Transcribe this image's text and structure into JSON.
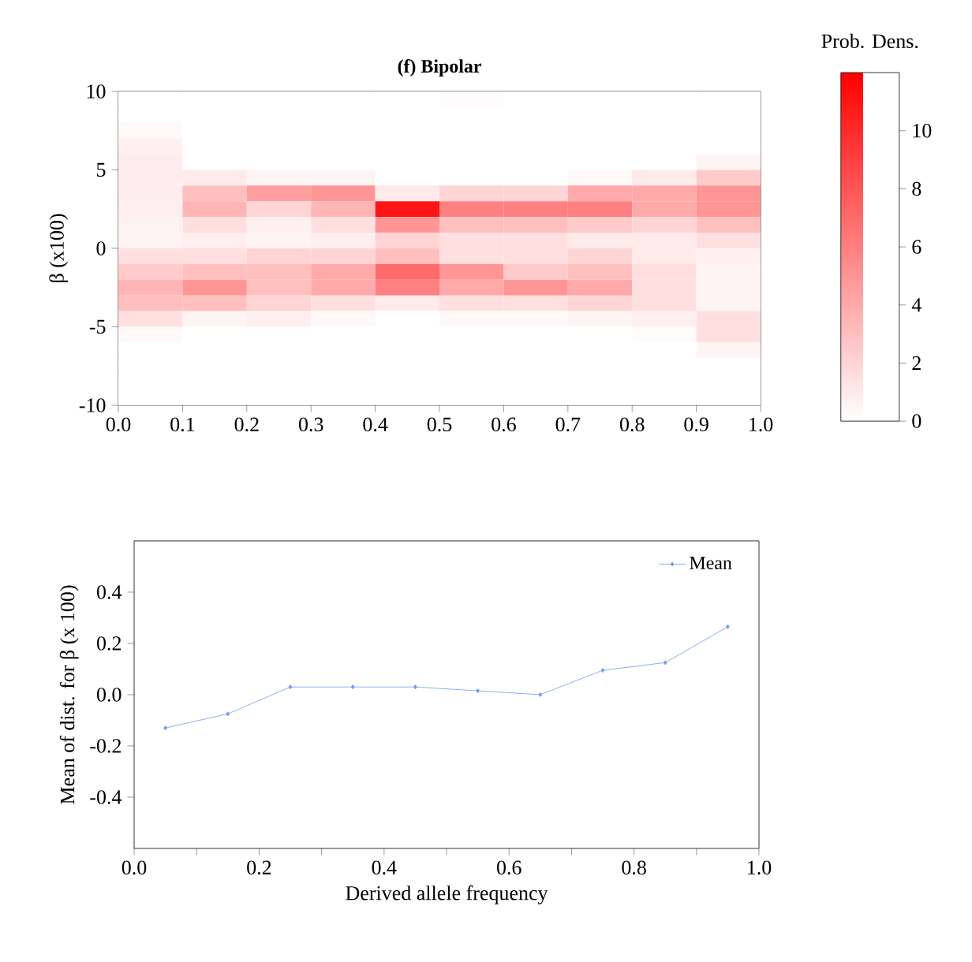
{
  "chart_data": [
    {
      "type": "heatmap",
      "title": "(f) Bipolar",
      "ylabel": "β (x100)",
      "clabel": "Prob. Dens.",
      "xlim": [
        0,
        1
      ],
      "ylim": [
        -10,
        10
      ],
      "xticks": [
        {
          "value": 0,
          "label": "0.0"
        },
        0.1,
        0.2,
        0.3,
        0.4,
        0.5,
        0.6,
        0.7,
        0.8,
        0.9,
        {
          "value": 1,
          "label": "1.0"
        }
      ],
      "yticks": [
        -10,
        -5,
        0,
        5,
        10
      ],
      "clim": [
        0,
        12
      ],
      "cticks": [
        0,
        2,
        4,
        6,
        8,
        10
      ],
      "cells": [
        [
          0,
          0,
          0,
          0,
          0,
          0.2,
          0,
          0,
          0,
          0
        ],
        [
          0,
          0,
          0,
          0,
          0,
          0,
          0,
          0,
          0,
          0
        ],
        [
          0.3,
          0,
          0,
          0,
          0,
          0,
          0,
          0,
          0,
          0
        ],
        [
          0.7,
          0,
          0,
          0,
          0,
          0,
          0,
          0,
          0,
          0
        ],
        [
          0.9,
          0,
          0,
          0,
          0,
          0,
          0,
          0,
          0,
          0.5
        ],
        [
          0.9,
          1,
          0.5,
          0.5,
          0,
          0,
          0,
          0.3,
          1,
          2.5
        ],
        [
          0.9,
          3,
          4.5,
          5,
          1,
          2,
          2,
          4,
          4,
          5
        ],
        [
          0.8,
          3.5,
          2,
          3.5,
          11,
          6,
          6,
          6,
          4,
          5
        ],
        [
          0.6,
          1.5,
          0.7,
          1.5,
          5,
          3,
          3,
          2.5,
          2,
          3
        ],
        [
          0.5,
          0.8,
          0.5,
          0.8,
          2,
          1.5,
          1.5,
          1,
          1,
          1.5
        ],
        [
          1.5,
          1.5,
          2,
          2,
          3,
          1.5,
          1.5,
          2,
          1,
          0.7
        ],
        [
          2.5,
          3,
          3,
          4,
          7,
          5,
          2.5,
          3,
          1.5,
          0.5
        ],
        [
          3.5,
          5,
          3,
          4,
          6,
          4,
          5,
          4,
          1.5,
          0.5
        ],
        [
          3,
          3,
          2,
          1.5,
          1,
          1.5,
          1.5,
          2,
          1.5,
          0.5
        ],
        [
          1.5,
          0.5,
          0.8,
          0.3,
          0,
          0.3,
          0.3,
          0.5,
          0.8,
          1.5
        ],
        [
          0.3,
          0,
          0,
          0,
          0,
          0,
          0,
          0,
          0.2,
          1.5
        ],
        [
          0,
          0,
          0,
          0,
          0,
          0,
          0,
          0,
          0,
          0.5
        ],
        [
          0,
          0,
          0,
          0,
          0,
          0,
          0,
          0,
          0,
          0
        ],
        [
          0,
          0,
          0,
          0,
          0,
          0,
          0,
          0,
          0,
          0
        ],
        [
          0,
          0,
          0,
          0,
          0,
          0,
          0,
          0,
          0,
          0
        ]
      ]
    },
    {
      "type": "line",
      "xlabel": "Derived allele frequency",
      "ylabel": "Mean of dist. for β (x 100)",
      "x": [
        0.05,
        0.15,
        0.25,
        0.35,
        0.45,
        0.55,
        0.65,
        0.75,
        0.85,
        0.95
      ],
      "series": [
        {
          "name": "Mean",
          "color": "#6f9bef",
          "values": [
            -0.13,
            -0.075,
            0.03,
            0.03,
            0.03,
            0.015,
            0,
            0.095,
            0.125,
            0.265
          ]
        }
      ],
      "xlim": [
        0,
        1
      ],
      "ylim": [
        -0.6,
        0.6
      ],
      "xticks": [
        {
          "value": 0,
          "label": "0.0"
        },
        {
          "value": 0.1,
          "label": null
        },
        0.2,
        {
          "value": 0.3,
          "label": null
        },
        0.4,
        {
          "value": 0.5,
          "label": null
        },
        0.6,
        {
          "value": 0.7,
          "label": null
        },
        0.8,
        {
          "value": 0.9,
          "label": null
        },
        {
          "value": 1,
          "label": "1.0"
        }
      ],
      "yticks": [
        -0.4,
        -0.2,
        {
          "value": 0,
          "label": "0.0"
        },
        0.2,
        0.4
      ],
      "legend": "top right",
      "marker": "diamond",
      "line_style": "solid"
    }
  ]
}
